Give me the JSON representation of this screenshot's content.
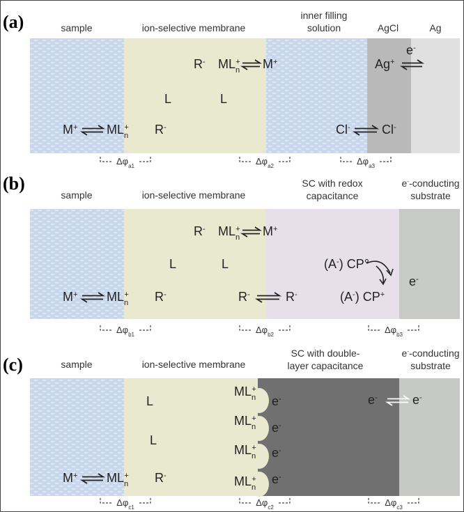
{
  "panels": [
    {
      "label": "(a)",
      "headers": [
        [
          "sample"
        ],
        [
          "ion-selective membrane"
        ],
        [
          "inner filling",
          "solution"
        ],
        [
          "AgCl"
        ],
        [
          "Ag"
        ]
      ],
      "species": [
        [
          {
            "text": "R",
            "sup": "-"
          }
        ],
        [
          {
            "text": "ML",
            "sub": "n",
            "sup": "+"
          }
        ],
        [
          {
            "text": "M",
            "sup": "+"
          }
        ],
        [
          "L"
        ],
        [
          "L"
        ],
        [
          {
            "text": "M",
            "sup": "+"
          }
        ],
        [
          {
            "text": "ML",
            "sub": "n",
            "sup": "+"
          }
        ],
        [
          {
            "text": "R",
            "sup": "-"
          }
        ],
        [
          {
            "text": "Ag",
            "sup": "+"
          }
        ],
        [
          {
            "text": "e",
            "sup": "-"
          }
        ],
        [
          {
            "text": "Cl",
            "sup": "-"
          }
        ],
        [
          {
            "text": "Cl",
            "sup": "-"
          }
        ]
      ],
      "potentials": [
        [
          {
            "text": "Δφ",
            "sub": "a1"
          }
        ],
        [
          {
            "text": "Δφ",
            "sub": "a2"
          }
        ],
        [
          {
            "text": "Δφ",
            "sub": "a3"
          }
        ]
      ]
    },
    {
      "label": "(b)",
      "headers": [
        [
          "sample"
        ],
        [
          "ion-selective membrane"
        ],
        [
          "SC with redox",
          "capacitance"
        ],
        [
          [
            {
              "text": "e",
              "sup": "-"
            },
            "-conducting"
          ],
          "substrate"
        ]
      ],
      "species": [
        [
          {
            "text": "R",
            "sup": "-"
          }
        ],
        [
          {
            "text": "ML",
            "sub": "n",
            "sup": "+"
          }
        ],
        [
          {
            "text": "M",
            "sup": "+"
          }
        ],
        [
          "L"
        ],
        [
          "L"
        ],
        [
          {
            "text": "M",
            "sup": "+"
          }
        ],
        [
          {
            "text": "ML",
            "sub": "n",
            "sup": "+"
          }
        ],
        [
          {
            "text": "R",
            "sup": "-"
          }
        ],
        [
          {
            "text": "R",
            "sup": "-"
          }
        ],
        [
          {
            "text": "R",
            "sup": "-"
          }
        ],
        [
          {
            "text": "(A",
            "sup": "-"
          },
          ") CP°"
        ],
        [
          {
            "text": "e",
            "sup": "-"
          }
        ],
        [
          {
            "text": "(A",
            "sup": "-"
          },
          {
            "text": ") CP",
            "sup": "+"
          }
        ]
      ],
      "potentials": [
        [
          {
            "text": "Δφ",
            "sub": "b1"
          }
        ],
        [
          {
            "text": "Δφ",
            "sub": "b2"
          }
        ],
        [
          {
            "text": "Δφ",
            "sub": "b3"
          }
        ]
      ]
    },
    {
      "label": "(c)",
      "headers": [
        [
          "sample"
        ],
        [
          "ion-selective membrane"
        ],
        [
          "SC with double-",
          "layer capacitance"
        ],
        [
          [
            {
              "text": "e",
              "sup": "-"
            },
            "-conducting"
          ],
          "substrate"
        ]
      ],
      "species": [
        [
          "L"
        ],
        [
          "L"
        ],
        [
          {
            "text": "M",
            "sup": "+"
          }
        ],
        [
          {
            "text": "ML",
            "sub": "n",
            "sup": "+"
          }
        ],
        [
          {
            "text": "R",
            "sup": "-"
          }
        ],
        [
          {
            "text": "ML",
            "sub": "n",
            "sup": "+"
          }
        ],
        [
          {
            "text": "e",
            "sup": "-"
          }
        ],
        [
          {
            "text": "ML",
            "sub": "n",
            "sup": "+"
          }
        ],
        [
          {
            "text": "e",
            "sup": "-"
          }
        ],
        [
          {
            "text": "ML",
            "sub": "n",
            "sup": "+"
          }
        ],
        [
          {
            "text": "e",
            "sup": "-"
          }
        ],
        [
          {
            "text": "ML",
            "sub": "n",
            "sup": "+"
          }
        ],
        [
          {
            "text": "e",
            "sup": "-"
          }
        ],
        [
          {
            "text": "e",
            "sup": "-"
          }
        ],
        [
          {
            "text": "e",
            "sup": "-"
          }
        ]
      ],
      "potentials": [
        [
          {
            "text": "Δφ",
            "sub": "c1"
          }
        ],
        [
          {
            "text": "Δφ",
            "sub": "c2"
          }
        ],
        [
          {
            "text": "Δφ",
            "sub": "c3"
          }
        ]
      ]
    }
  ]
}
